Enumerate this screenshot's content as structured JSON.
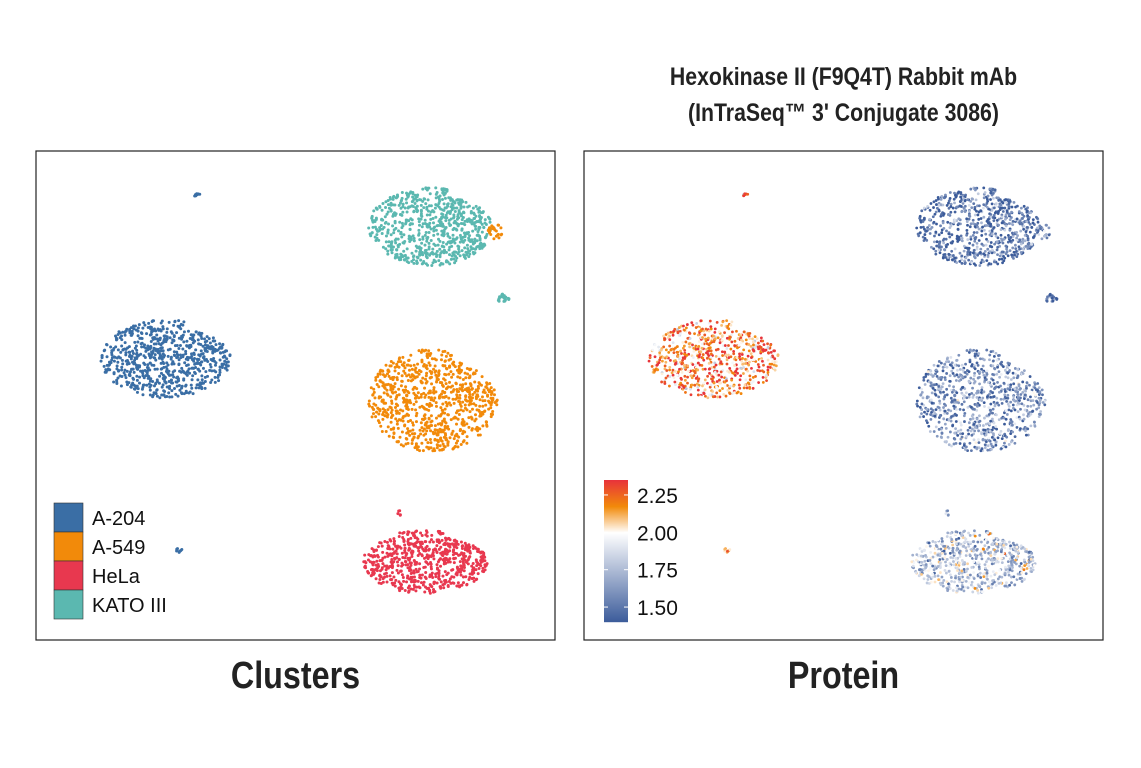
{
  "chart_data": [
    {
      "type": "scatter",
      "title": "",
      "panel_label": "Clusters",
      "legend": {
        "placement": "bottom-left",
        "entries": [
          {
            "name": "A-204",
            "color": "#3a6ea5"
          },
          {
            "name": "A-549",
            "color": "#f28a0a"
          },
          {
            "name": "HeLa",
            "color": "#e8384f"
          },
          {
            "name": "KATO III",
            "color": "#5bb8b0"
          }
        ]
      },
      "clusters": [
        {
          "group": "KATO III",
          "x": 76,
          "y": 15.5,
          "rx": 12,
          "ry": 8,
          "n": 700
        },
        {
          "group": "A-549",
          "x": 88.5,
          "y": 16.5,
          "rx": 1.4,
          "ry": 1.5,
          "n": 25
        },
        {
          "group": "KATO III",
          "x": 90,
          "y": 30,
          "rx": 1.2,
          "ry": 1,
          "n": 20
        },
        {
          "group": "A-204",
          "x": 31,
          "y": 9,
          "rx": 0.6,
          "ry": 0.4,
          "n": 8
        },
        {
          "group": "A-204",
          "x": 25,
          "y": 42.5,
          "rx": 12.5,
          "ry": 8,
          "n": 700
        },
        {
          "group": "A-549",
          "x": 76.5,
          "y": 51,
          "rx": 12.5,
          "ry": 10.5,
          "n": 800
        },
        {
          "group": "HeLa",
          "x": 75,
          "y": 84,
          "rx": 12,
          "ry": 6.5,
          "n": 650
        },
        {
          "group": "A-204",
          "x": 27.7,
          "y": 81.6,
          "rx": 0.7,
          "ry": 0.5,
          "n": 8
        },
        {
          "group": "HeLa",
          "x": 70,
          "y": 74,
          "rx": 0.4,
          "ry": 0.6,
          "n": 5
        }
      ],
      "xlim": [
        0,
        100
      ],
      "ylim": [
        0,
        100
      ]
    },
    {
      "type": "scatter",
      "title": "Hexokinase II (F9Q4T) Rabbit mAb",
      "subtitle": "(InTraSeq™ 3' Conjugate 3086)",
      "panel_label": "Protein",
      "colorbar": {
        "placement": "bottom-left",
        "range": [
          1.4,
          2.35
        ],
        "ticks": [
          "2.25",
          "2.00",
          "1.75",
          "1.50"
        ],
        "tick_values": [
          2.25,
          2.0,
          1.75,
          1.5
        ],
        "colors": [
          "#3b5b9a",
          "#ffffff",
          "#f28a0a",
          "#e8343a"
        ]
      },
      "mean_values": {
        "A-204": 2.2,
        "A-549": 1.6,
        "HeLa": 1.8,
        "KATO III": 1.5
      },
      "xlim": [
        0,
        100
      ],
      "ylim": [
        0,
        100
      ]
    }
  ]
}
